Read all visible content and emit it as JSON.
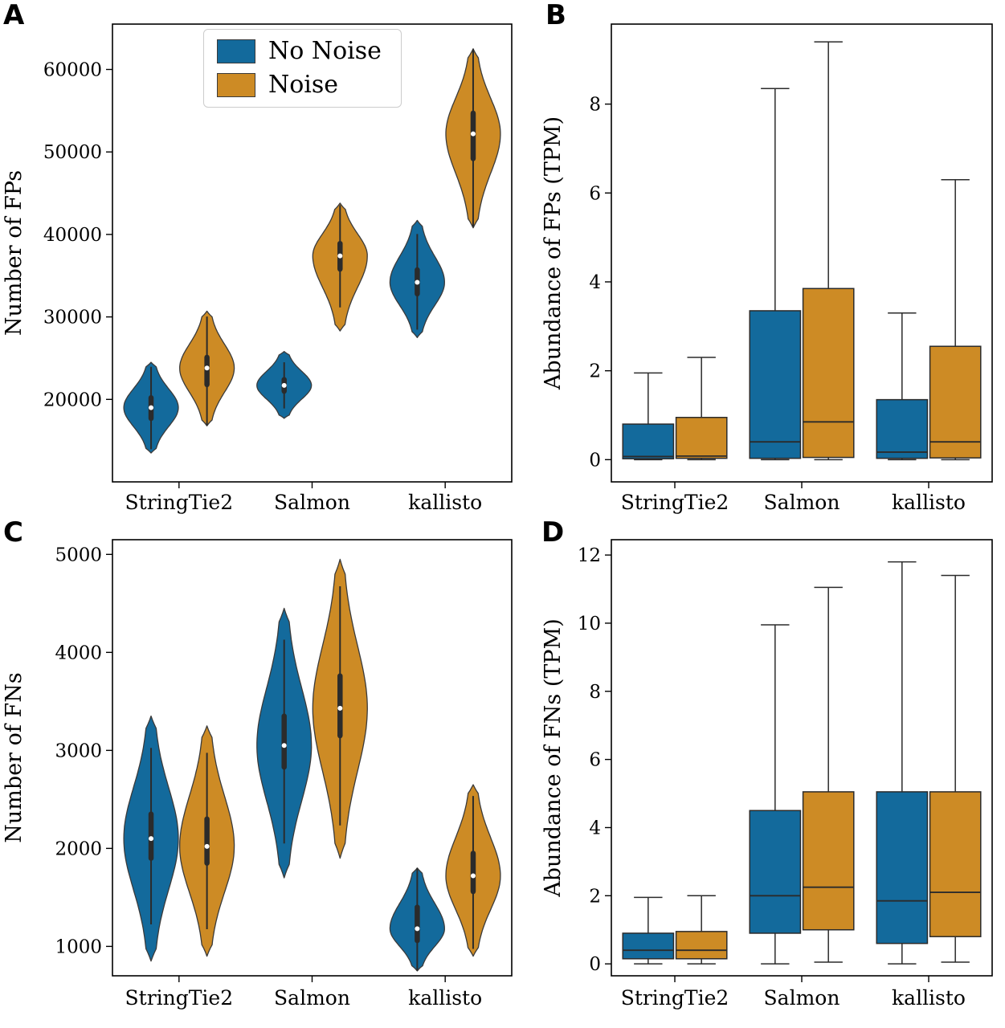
{
  "legend": {
    "items": [
      {
        "label": "No Noise",
        "color": "#136a9c"
      },
      {
        "label": "Noise",
        "color": "#cd8b25"
      }
    ]
  },
  "chart_data": [
    {
      "panel": "A",
      "type": "violin",
      "ylabel": "Number of FPs",
      "categories": [
        "StringTie2",
        "Salmon",
        "kallisto"
      ],
      "ylim": [
        10000,
        65500
      ],
      "yticks": [
        20000,
        30000,
        40000,
        50000,
        60000
      ],
      "legend_position": "upper-left",
      "series": [
        {
          "name": "No Noise",
          "color": "#136a9c",
          "stats": [
            {
              "min": 13500,
              "q1": 17700,
              "med": 19000,
              "q3": 20200,
              "max": 24500
            },
            {
              "min": 17700,
              "q1": 21000,
              "med": 21700,
              "q3": 22400,
              "max": 25800
            },
            {
              "min": 27500,
              "q1": 32800,
              "med": 34200,
              "q3": 35700,
              "max": 41700
            }
          ]
        },
        {
          "name": "Noise",
          "color": "#cd8b25",
          "stats": [
            {
              "min": 16800,
              "q1": 21800,
              "med": 23800,
              "q3": 25100,
              "max": 30700
            },
            {
              "min": 28300,
              "q1": 35800,
              "med": 37400,
              "q3": 38900,
              "max": 43800
            },
            {
              "min": 40800,
              "q1": 49200,
              "med": 52200,
              "q3": 54700,
              "max": 62500
            }
          ]
        }
      ]
    },
    {
      "panel": "B",
      "type": "box",
      "ylabel": "Abundance of FPs (TPM)",
      "categories": [
        "StringTie2",
        "Salmon",
        "kallisto"
      ],
      "ylim": [
        -0.5,
        9.8
      ],
      "yticks": [
        0,
        2,
        4,
        6,
        8
      ],
      "series": [
        {
          "name": "No Noise",
          "color": "#136a9c",
          "stats": [
            {
              "lo": 0.0,
              "q1": 0.02,
              "med": 0.07,
              "q3": 0.8,
              "hi": 1.95
            },
            {
              "lo": 0.0,
              "q1": 0.03,
              "med": 0.4,
              "q3": 3.35,
              "hi": 8.35
            },
            {
              "lo": 0.0,
              "q1": 0.03,
              "med": 0.17,
              "q3": 1.35,
              "hi": 3.3
            }
          ]
        },
        {
          "name": "Noise",
          "color": "#cd8b25",
          "stats": [
            {
              "lo": 0.0,
              "q1": 0.03,
              "med": 0.08,
              "q3": 0.95,
              "hi": 2.3
            },
            {
              "lo": 0.0,
              "q1": 0.05,
              "med": 0.85,
              "q3": 3.85,
              "hi": 9.4
            },
            {
              "lo": 0.0,
              "q1": 0.04,
              "med": 0.4,
              "q3": 2.55,
              "hi": 6.3
            }
          ]
        }
      ]
    },
    {
      "panel": "C",
      "type": "violin",
      "ylabel": "Number of FNs",
      "categories": [
        "StringTie2",
        "Salmon",
        "kallisto"
      ],
      "ylim": [
        700,
        5150
      ],
      "yticks": [
        1000,
        2000,
        3000,
        4000,
        5000
      ],
      "series": [
        {
          "name": "No Noise",
          "color": "#136a9c",
          "stats": [
            {
              "min": 850,
              "q1": 1900,
              "med": 2100,
              "q3": 2350,
              "max": 3350
            },
            {
              "min": 1700,
              "q1": 2830,
              "med": 3050,
              "q3": 3350,
              "max": 4450
            },
            {
              "min": 750,
              "q1": 1060,
              "med": 1180,
              "q3": 1400,
              "max": 1800
            }
          ]
        },
        {
          "name": "Noise",
          "color": "#cd8b25",
          "stats": [
            {
              "min": 900,
              "q1": 1850,
              "med": 2020,
              "q3": 2300,
              "max": 3250
            },
            {
              "min": 1900,
              "q1": 3150,
              "med": 3430,
              "q3": 3760,
              "max": 4950
            },
            {
              "min": 900,
              "q1": 1560,
              "med": 1720,
              "q3": 1950,
              "max": 2650
            }
          ]
        }
      ]
    },
    {
      "panel": "D",
      "type": "box",
      "ylabel": "Abundance of FNs (TPM)",
      "categories": [
        "StringTie2",
        "Salmon",
        "kallisto"
      ],
      "ylim": [
        -0.35,
        12.45
      ],
      "yticks": [
        0,
        2,
        4,
        6,
        8,
        10,
        12
      ],
      "series": [
        {
          "name": "No Noise",
          "color": "#136a9c",
          "stats": [
            {
              "lo": 0.0,
              "q1": 0.15,
              "med": 0.4,
              "q3": 0.9,
              "hi": 1.95
            },
            {
              "lo": 0.0,
              "q1": 0.9,
              "med": 2.0,
              "q3": 4.5,
              "hi": 9.95
            },
            {
              "lo": 0.0,
              "q1": 0.6,
              "med": 1.85,
              "q3": 5.05,
              "hi": 11.8
            }
          ]
        },
        {
          "name": "Noise",
          "color": "#cd8b25",
          "stats": [
            {
              "lo": 0.0,
              "q1": 0.15,
              "med": 0.4,
              "q3": 0.95,
              "hi": 2.0
            },
            {
              "lo": 0.05,
              "q1": 1.0,
              "med": 2.25,
              "q3": 5.05,
              "hi": 11.05
            },
            {
              "lo": 0.05,
              "q1": 0.8,
              "med": 2.1,
              "q3": 5.05,
              "hi": 11.4
            }
          ]
        }
      ]
    }
  ]
}
